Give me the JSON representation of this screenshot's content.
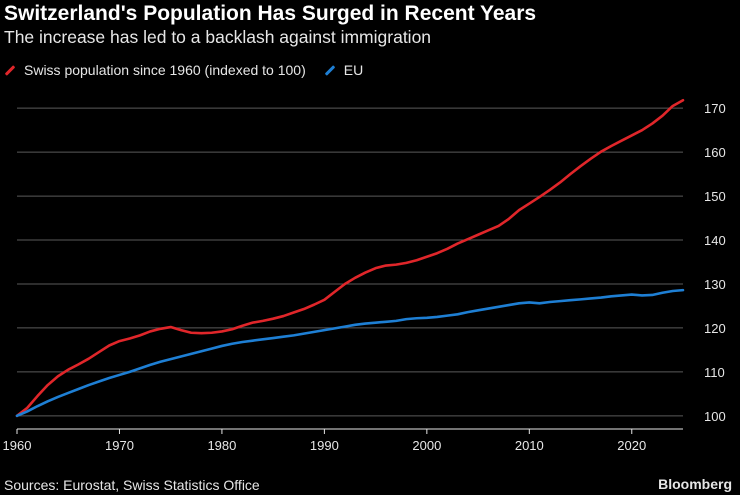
{
  "title": "Switzerland's Population Has Surged in Recent Years",
  "subtitle": "The increase has led to a backlash against immigration",
  "source": "Sources: Eurostat, Swiss Statistics Office",
  "brand": "Bloomberg",
  "colors": {
    "swiss": "#e0262a",
    "eu": "#1e7fd4",
    "grid": "#5a5a5a",
    "axis": "#e6e6e6",
    "background": "#000000"
  },
  "chart_data": {
    "type": "line",
    "title": "Switzerland's Population Has Surged in Recent Years",
    "subtitle": "The increase has led to a backlash against immigration",
    "xlabel": "",
    "ylabel": "",
    "xlim": [
      1960,
      2025
    ],
    "ylim": [
      97,
      173
    ],
    "x_ticks": [
      1960,
      1970,
      1980,
      1990,
      2000,
      2010,
      2020
    ],
    "y_ticks": [
      100,
      110,
      120,
      130,
      140,
      150,
      160,
      170
    ],
    "grid": true,
    "legend_position": "top-left",
    "series": [
      {
        "name": "Swiss population since 1960 (indexed to 100)",
        "color": "#e0262a",
        "points": [
          [
            1960,
            100
          ],
          [
            1961,
            101.8
          ],
          [
            1962,
            104.5
          ],
          [
            1963,
            107
          ],
          [
            1964,
            109
          ],
          [
            1965,
            110.5
          ],
          [
            1966,
            111.7
          ],
          [
            1967,
            113
          ],
          [
            1968,
            114.5
          ],
          [
            1969,
            116
          ],
          [
            1970,
            117
          ],
          [
            1971,
            117.6
          ],
          [
            1972,
            118.3
          ],
          [
            1973,
            119.2
          ],
          [
            1974,
            119.8
          ],
          [
            1975,
            120.2
          ],
          [
            1976,
            119.5
          ],
          [
            1977,
            118.9
          ],
          [
            1978,
            118.8
          ],
          [
            1979,
            118.9
          ],
          [
            1980,
            119.2
          ],
          [
            1981,
            119.7
          ],
          [
            1982,
            120.5
          ],
          [
            1983,
            121.2
          ],
          [
            1984,
            121.6
          ],
          [
            1985,
            122.1
          ],
          [
            1986,
            122.7
          ],
          [
            1987,
            123.5
          ],
          [
            1988,
            124.3
          ],
          [
            1989,
            125.3
          ],
          [
            1990,
            126.4
          ],
          [
            1991,
            128.2
          ],
          [
            1992,
            130
          ],
          [
            1993,
            131.4
          ],
          [
            1994,
            132.6
          ],
          [
            1995,
            133.6
          ],
          [
            1996,
            134.2
          ],
          [
            1997,
            134.4
          ],
          [
            1998,
            134.8
          ],
          [
            1999,
            135.4
          ],
          [
            2000,
            136.2
          ],
          [
            2001,
            137
          ],
          [
            2002,
            138
          ],
          [
            2003,
            139.2
          ],
          [
            2004,
            140.2
          ],
          [
            2005,
            141.2
          ],
          [
            2006,
            142.2
          ],
          [
            2007,
            143.2
          ],
          [
            2008,
            144.8
          ],
          [
            2009,
            146.8
          ],
          [
            2010,
            148.3
          ],
          [
            2011,
            149.8
          ],
          [
            2012,
            151.4
          ],
          [
            2013,
            153.1
          ],
          [
            2014,
            155
          ],
          [
            2015,
            156.8
          ],
          [
            2016,
            158.5
          ],
          [
            2017,
            160.1
          ],
          [
            2018,
            161.4
          ],
          [
            2019,
            162.6
          ],
          [
            2020,
            163.8
          ],
          [
            2021,
            165
          ],
          [
            2022,
            166.5
          ],
          [
            2023,
            168.3
          ],
          [
            2024,
            170.5
          ],
          [
            2025,
            171.8
          ]
        ]
      },
      {
        "name": "EU",
        "color": "#1e7fd4",
        "points": [
          [
            1960,
            100
          ],
          [
            1961,
            101
          ],
          [
            1962,
            102.2
          ],
          [
            1963,
            103.3
          ],
          [
            1964,
            104.3
          ],
          [
            1965,
            105.2
          ],
          [
            1966,
            106.1
          ],
          [
            1967,
            107
          ],
          [
            1968,
            107.8
          ],
          [
            1969,
            108.6
          ],
          [
            1970,
            109.3
          ],
          [
            1971,
            110
          ],
          [
            1972,
            110.8
          ],
          [
            1973,
            111.6
          ],
          [
            1974,
            112.3
          ],
          [
            1975,
            112.9
          ],
          [
            1976,
            113.5
          ],
          [
            1977,
            114.1
          ],
          [
            1978,
            114.7
          ],
          [
            1979,
            115.3
          ],
          [
            1980,
            115.9
          ],
          [
            1981,
            116.4
          ],
          [
            1982,
            116.8
          ],
          [
            1983,
            117.1
          ],
          [
            1984,
            117.4
          ],
          [
            1985,
            117.7
          ],
          [
            1986,
            118
          ],
          [
            1987,
            118.3
          ],
          [
            1988,
            118.7
          ],
          [
            1989,
            119.1
          ],
          [
            1990,
            119.5
          ],
          [
            1991,
            119.9
          ],
          [
            1992,
            120.3
          ],
          [
            1993,
            120.7
          ],
          [
            1994,
            121
          ],
          [
            1995,
            121.2
          ],
          [
            1996,
            121.4
          ],
          [
            1997,
            121.6
          ],
          [
            1998,
            122
          ],
          [
            1999,
            122.2
          ],
          [
            2000,
            122.3
          ],
          [
            2001,
            122.5
          ],
          [
            2002,
            122.8
          ],
          [
            2003,
            123.1
          ],
          [
            2004,
            123.6
          ],
          [
            2005,
            124
          ],
          [
            2006,
            124.4
          ],
          [
            2007,
            124.8
          ],
          [
            2008,
            125.2
          ],
          [
            2009,
            125.6
          ],
          [
            2010,
            125.8
          ],
          [
            2011,
            125.6
          ],
          [
            2012,
            125.9
          ],
          [
            2013,
            126.1
          ],
          [
            2014,
            126.3
          ],
          [
            2015,
            126.5
          ],
          [
            2016,
            126.7
          ],
          [
            2017,
            126.9
          ],
          [
            2018,
            127.2
          ],
          [
            2019,
            127.4
          ],
          [
            2020,
            127.6
          ],
          [
            2021,
            127.4
          ],
          [
            2022,
            127.5
          ],
          [
            2023,
            128
          ],
          [
            2024,
            128.4
          ],
          [
            2025,
            128.6
          ]
        ]
      }
    ]
  }
}
